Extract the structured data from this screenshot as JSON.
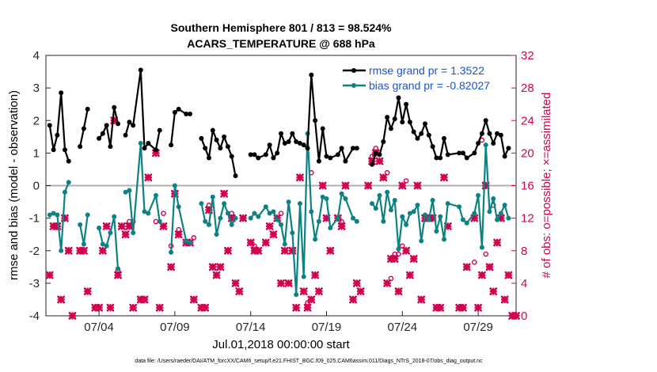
{
  "chart_data": {
    "type": "line",
    "title": "Southern Hemisphere 801 / 813 = 98.524%",
    "subtitle": "ACARS_TEMPERATURE @ 688 hPa",
    "xlabel": "Jul.01,2018 00:00:00 start",
    "ylabel": "rmse and bias (model - observation)",
    "y2label": "# of obs: o=possible; ×=assimilated",
    "xlim": [
      0.5,
      31.5
    ],
    "ylim": [
      -4,
      4
    ],
    "y2lim": [
      0,
      32
    ],
    "xtick_values": [
      4,
      9,
      14,
      19,
      24,
      29
    ],
    "xtick_labels": [
      "07/04",
      "07/09",
      "07/14",
      "07/19",
      "07/24",
      "07/29"
    ],
    "yticks": [
      "-4",
      "-3",
      "-2",
      "-1",
      "0",
      "1",
      "2",
      "3",
      "4"
    ],
    "y2ticks": [
      "0",
      "4",
      "8",
      "12",
      "16",
      "20",
      "24",
      "28",
      "32"
    ],
    "zero_line": 0,
    "footnote": "data file: /Users/raeder/DAI/ATM_forcXX/CAM6_setup/f.e21.FHIST_BGC.f09_025.CAM6assim.011/Diags_NTrS_2018-07/obs_diag_output.nc",
    "series": [
      {
        "name": "rmse grand pr = 1.3522",
        "color": "#000000",
        "x": [
          0.75,
          1.0,
          1.25,
          1.5,
          1.75,
          2.0,
          2.25,
          2.75,
          3.0,
          3.25,
          3.75,
          4.0,
          4.25,
          4.5,
          4.75,
          5.0,
          5.25,
          5.5,
          5.75,
          6.0,
          6.25,
          6.75,
          7.0,
          7.25,
          7.75,
          8.0,
          8.25,
          8.75,
          9.0,
          9.25,
          9.75,
          10.0,
          10.25,
          10.75,
          11.0,
          11.25,
          11.5,
          11.75,
          12.0,
          12.25,
          12.5,
          12.75,
          13.0,
          13.25,
          13.5,
          14.0,
          14.25,
          14.5,
          15.0,
          15.25,
          15.5,
          15.75,
          16.0,
          16.25,
          16.5,
          16.75,
          17.0,
          17.25,
          17.5,
          17.75,
          18.0,
          18.25,
          18.5,
          18.75,
          19.0,
          19.25,
          19.75,
          20.0,
          20.25,
          20.75,
          21.0,
          21.25,
          21.75,
          22.0,
          22.25,
          22.5,
          22.75,
          23.0,
          23.25,
          23.5,
          23.75,
          24.0,
          24.25,
          24.5,
          24.75,
          25.0,
          25.25,
          25.5,
          25.75,
          26.0,
          26.25,
          26.5,
          26.75,
          27.0,
          27.75,
          28.0,
          28.25,
          28.75,
          29.0,
          29.25,
          29.5,
          29.75,
          30.0,
          30.25,
          30.5,
          30.75,
          31.0
        ],
        "values": [
          1.85,
          1.1,
          1.55,
          2.85,
          1.1,
          0.75,
          null,
          1.2,
          1.75,
          2.35,
          null,
          1.45,
          1.6,
          1.85,
          1.2,
          2.4,
          1.9,
          null,
          1.55,
          1.95,
          1.85,
          3.55,
          1.15,
          1.3,
          1.1,
          1.7,
          null,
          1.25,
          2.25,
          2.35,
          2.2,
          2.2,
          null,
          1.45,
          1.15,
          0.85,
          1.7,
          1.4,
          1.15,
          1.5,
          1.2,
          0.9,
          0.3,
          null,
          null,
          0.95,
          0.95,
          0.85,
          0.95,
          1.25,
          0.85,
          1.0,
          1.6,
          1.3,
          1.35,
          1.6,
          1.35,
          1.3,
          1.25,
          1.15,
          3.4,
          2.0,
          0.75,
          1.75,
          0.9,
          0.85,
          0.95,
          1.15,
          0.75,
          1.15,
          1.15,
          null,
          null,
          0.65,
          1.0,
          0.95,
          1.35,
          2.1,
          1.75,
          2.05,
          2.7,
          1.95,
          2.5,
          1.95,
          1.65,
          1.45,
          1.6,
          1.9,
          1.55,
          1.2,
          0.85,
          0.85,
          1.45,
          0.95,
          1.0,
          1.0,
          0.85,
          1.0,
          1.3,
          1.6,
          2.0,
          1.6,
          1.3,
          1.6,
          1.55,
          0.9,
          1.15
        ],
        "markers": "dot"
      },
      {
        "name": "bias grand pr = -0.82027",
        "color": "#0e8282",
        "x": [
          0.75,
          1.0,
          1.25,
          1.5,
          1.75,
          2.0,
          2.25,
          2.75,
          3.0,
          3.25,
          3.75,
          4.0,
          4.25,
          4.5,
          4.75,
          5.0,
          5.25,
          5.5,
          5.75,
          6.0,
          6.25,
          6.75,
          7.0,
          7.25,
          7.75,
          8.0,
          8.25,
          8.75,
          9.0,
          9.25,
          9.75,
          10.0,
          10.25,
          10.75,
          11.0,
          11.25,
          11.5,
          11.75,
          12.0,
          12.25,
          12.5,
          12.75,
          13.0,
          13.25,
          13.5,
          14.0,
          14.25,
          14.5,
          15.0,
          15.25,
          15.5,
          15.75,
          16.0,
          16.25,
          16.5,
          16.75,
          17.0,
          17.25,
          17.5,
          17.75,
          18.0,
          18.25,
          18.5,
          18.75,
          19.0,
          19.25,
          19.75,
          20.0,
          20.25,
          20.75,
          21.0,
          21.25,
          21.75,
          22.0,
          22.25,
          22.5,
          22.75,
          23.0,
          23.25,
          23.5,
          23.75,
          24.0,
          24.25,
          24.5,
          24.75,
          25.0,
          25.25,
          25.5,
          25.75,
          26.0,
          26.25,
          26.5,
          26.75,
          27.0,
          27.75,
          28.0,
          28.25,
          28.75,
          29.0,
          29.25,
          29.5,
          29.75,
          30.0,
          30.25,
          30.5,
          30.75,
          31.0
        ],
        "values": [
          -0.9,
          -0.85,
          -0.9,
          -2.0,
          -0.2,
          0.1,
          null,
          -1.2,
          -1.8,
          -0.9,
          null,
          -1.3,
          -1.8,
          -1.85,
          -1.45,
          -0.95,
          -2.55,
          null,
          -0.2,
          -0.15,
          -1.45,
          1.3,
          -0.8,
          -0.85,
          -0.3,
          -1.1,
          null,
          -2.05,
          0.0,
          -0.65,
          -1.7,
          -1.75,
          null,
          -0.55,
          -1.1,
          -1.2,
          -0.35,
          -1.5,
          -1.0,
          -0.55,
          -0.85,
          -1.2,
          -1.0,
          null,
          null,
          -1.0,
          -0.85,
          -0.95,
          -0.65,
          -0.85,
          -0.8,
          -1.05,
          -1.2,
          -1.8,
          -0.5,
          -1.45,
          -3.35,
          -0.55,
          -2.8,
          1.6,
          -0.8,
          -1.65,
          -1.1,
          -0.35,
          -0.4,
          -1.3,
          -1.0,
          -0.25,
          -0.4,
          -1.0,
          -1.1,
          null,
          null,
          -0.55,
          -0.7,
          -0.3,
          -1.1,
          -0.2,
          -0.75,
          -0.45,
          -1.95,
          -0.95,
          -1.2,
          -0.85,
          -0.8,
          -0.6,
          -1.7,
          -0.9,
          -1.05,
          -0.45,
          -1.4,
          -0.95,
          -1.65,
          -0.55,
          -0.65,
          -1.05,
          -1.15,
          -0.85,
          -0.3,
          -1.9,
          1.25,
          -0.8,
          -0.4,
          -1.05,
          -0.85,
          -0.6,
          -1.0
        ],
        "markers": "dot"
      },
      {
        "name": "# of obs assimilated",
        "color": "#d0024f",
        "axis": "right",
        "x": [
          0.75,
          1.0,
          1.25,
          1.5,
          1.75,
          2.0,
          2.25,
          2.75,
          3.0,
          3.25,
          3.75,
          4.0,
          4.25,
          4.5,
          4.75,
          5.0,
          5.25,
          5.5,
          5.75,
          6.0,
          6.25,
          6.75,
          7.0,
          7.25,
          7.75,
          8.0,
          8.25,
          8.75,
          9.0,
          9.25,
          9.75,
          10.0,
          10.25,
          10.75,
          11.0,
          11.25,
          11.5,
          11.75,
          12.0,
          12.25,
          12.5,
          12.75,
          13.0,
          13.25,
          13.5,
          14.0,
          14.25,
          14.5,
          15.0,
          15.25,
          15.5,
          15.75,
          16.0,
          16.25,
          16.5,
          16.75,
          17.0,
          17.25,
          17.5,
          17.75,
          18.0,
          18.25,
          18.5,
          18.75,
          19.0,
          19.25,
          19.75,
          20.0,
          20.25,
          20.75,
          21.0,
          21.25,
          21.75,
          22.0,
          22.25,
          22.5,
          22.75,
          23.0,
          23.25,
          23.5,
          23.75,
          24.0,
          24.25,
          24.5,
          24.75,
          25.0,
          25.25,
          25.5,
          25.75,
          26.0,
          26.25,
          26.5,
          26.75,
          27.0,
          27.75,
          28.0,
          28.25,
          28.75,
          29.0,
          29.25,
          29.5,
          29.75,
          30.0,
          30.25,
          30.5,
          30.75,
          31.0,
          31.25,
          31.5
        ],
        "values": [
          5,
          11,
          11,
          2,
          12,
          8,
          0,
          8,
          8,
          3,
          1,
          1,
          8,
          11,
          1,
          24,
          5,
          11,
          10,
          11,
          1,
          2,
          2,
          17,
          20,
          1,
          11,
          6,
          15,
          10,
          9,
          9,
          2,
          1,
          1,
          13,
          6,
          5,
          6,
          15,
          8,
          12,
          4,
          3,
          12,
          9,
          8,
          8,
          9,
          11,
          10,
          12,
          4,
          8,
          4,
          8,
          1,
          17,
          3,
          1,
          2,
          5,
          3,
          16,
          12,
          8,
          12,
          11,
          16,
          2,
          4,
          3,
          16,
          19,
          20,
          19,
          17,
          4,
          7,
          7,
          3,
          16,
          8,
          5,
          7,
          16,
          2,
          12,
          12,
          12,
          1,
          1,
          17,
          11,
          1,
          1,
          6,
          12,
          1,
          5,
          16,
          6,
          3,
          9,
          12,
          2,
          5,
          0,
          0
        ]
      },
      {
        "name": "# of obs possible",
        "color": "#d0024f",
        "axis": "right",
        "x": [
          5.25,
          6.0,
          6.25,
          7.75,
          8.25,
          8.75,
          9.25,
          10.25,
          11.25,
          12.75,
          14.25,
          16.0,
          17.75,
          18.0,
          20.0,
          22.0,
          22.25,
          23.0,
          23.25,
          23.5,
          23.75,
          24.0,
          24.25,
          28.75,
          29.25,
          29.5,
          30.0
        ],
        "values": [
          5,
          11,
          11,
          11,
          12,
          8,
          10,
          9,
          13,
          12,
          8,
          12,
          1,
          17,
          11,
          19,
          20,
          17,
          4,
          7,
          7,
          8,
          16,
          6,
          21,
          7,
          13
        ],
        "markers": "circle"
      }
    ],
    "legend": {
      "position": "top-right",
      "entries": [
        "rmse grand pr = 1.3522",
        "bias grand pr = -0.82027"
      ]
    }
  }
}
